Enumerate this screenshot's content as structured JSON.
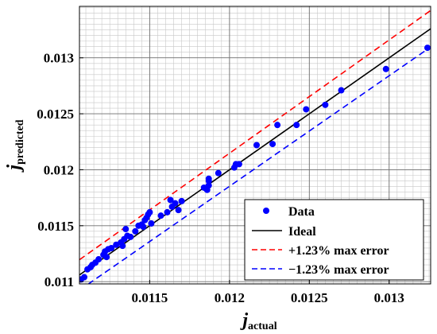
{
  "chart_data": {
    "type": "scatter",
    "xlabel": {
      "main": "j",
      "sub": "actual"
    },
    "ylabel": {
      "main": "j",
      "sub": "predicted"
    },
    "xlim": [
      0.01106,
      0.01326
    ],
    "ylim": [
      0.01098,
      0.01346
    ],
    "x_ticks": [
      {
        "value": 0.0115,
        "label": "0.0115"
      },
      {
        "value": 0.012,
        "label": "0.012"
      },
      {
        "value": 0.0125,
        "label": "0.0125"
      },
      {
        "value": 0.013,
        "label": "0.013"
      }
    ],
    "y_ticks": [
      {
        "value": 0.011,
        "label": "0.011"
      },
      {
        "value": 0.0115,
        "label": "0.0115"
      },
      {
        "value": 0.012,
        "label": "0.012"
      },
      {
        "value": 0.0125,
        "label": "0.0125"
      },
      {
        "value": 0.013,
        "label": "0.013"
      }
    ],
    "grid": true,
    "minor_grid": true,
    "legend_position": "bottom-right",
    "series": [
      {
        "name": "Data",
        "kind": "points",
        "color": "#0000ff",
        "points": [
          [
            0.01107,
            0.01102
          ],
          [
            0.01109,
            0.01104
          ],
          [
            0.01111,
            0.01111
          ],
          [
            0.01113,
            0.01113
          ],
          [
            0.01114,
            0.01115
          ],
          [
            0.01116,
            0.01117
          ],
          [
            0.01118,
            0.0112
          ],
          [
            0.01121,
            0.01124
          ],
          [
            0.01122,
            0.01127
          ],
          [
            0.01124,
            0.01129
          ],
          [
            0.01123,
            0.01122
          ],
          [
            0.01126,
            0.0113
          ],
          [
            0.01129,
            0.01133
          ],
          [
            0.01132,
            0.01135
          ],
          [
            0.01133,
            0.01132
          ],
          [
            0.01134,
            0.01138
          ],
          [
            0.01136,
            0.01141
          ],
          [
            0.01135,
            0.01147
          ],
          [
            0.01138,
            0.0114
          ],
          [
            0.01141,
            0.01145
          ],
          [
            0.01143,
            0.0115
          ],
          [
            0.01145,
            0.01151
          ],
          [
            0.01147,
            0.01155
          ],
          [
            0.01146,
            0.01149
          ],
          [
            0.01148,
            0.01157
          ],
          [
            0.01149,
            0.0116
          ],
          [
            0.0115,
            0.01162
          ],
          [
            0.01151,
            0.01152
          ],
          [
            0.01157,
            0.01159
          ],
          [
            0.01161,
            0.01162
          ],
          [
            0.01163,
            0.01173
          ],
          [
            0.01164,
            0.01167
          ],
          [
            0.01166,
            0.0117
          ],
          [
            0.01168,
            0.01164
          ],
          [
            0.0117,
            0.01172
          ],
          [
            0.01184,
            0.01184
          ],
          [
            0.01186,
            0.01182
          ],
          [
            0.01187,
            0.01186
          ],
          [
            0.01187,
            0.0119
          ],
          [
            0.01187,
            0.01192
          ],
          [
            0.01193,
            0.01197
          ],
          [
            0.01203,
            0.01202
          ],
          [
            0.01204,
            0.01205
          ],
          [
            0.01206,
            0.01205
          ],
          [
            0.01217,
            0.01222
          ],
          [
            0.01227,
            0.01223
          ],
          [
            0.0123,
            0.0124
          ],
          [
            0.01242,
            0.0124
          ],
          [
            0.01248,
            0.01254
          ],
          [
            0.0126,
            0.01258
          ],
          [
            0.0127,
            0.01271
          ],
          [
            0.01298,
            0.0129
          ],
          [
            0.01324,
            0.01309
          ]
        ]
      },
      {
        "name": "Ideal",
        "kind": "line",
        "color": "#000000",
        "dash": "solid",
        "factor": 1.0
      },
      {
        "name": "+1.23% max error",
        "kind": "line",
        "color": "#ff0000",
        "dash": "dashed",
        "factor": 1.0123
      },
      {
        "name": "−1.23% max error",
        "kind": "line",
        "color": "#0000ff",
        "dash": "dashed",
        "factor": 0.9877
      }
    ]
  }
}
